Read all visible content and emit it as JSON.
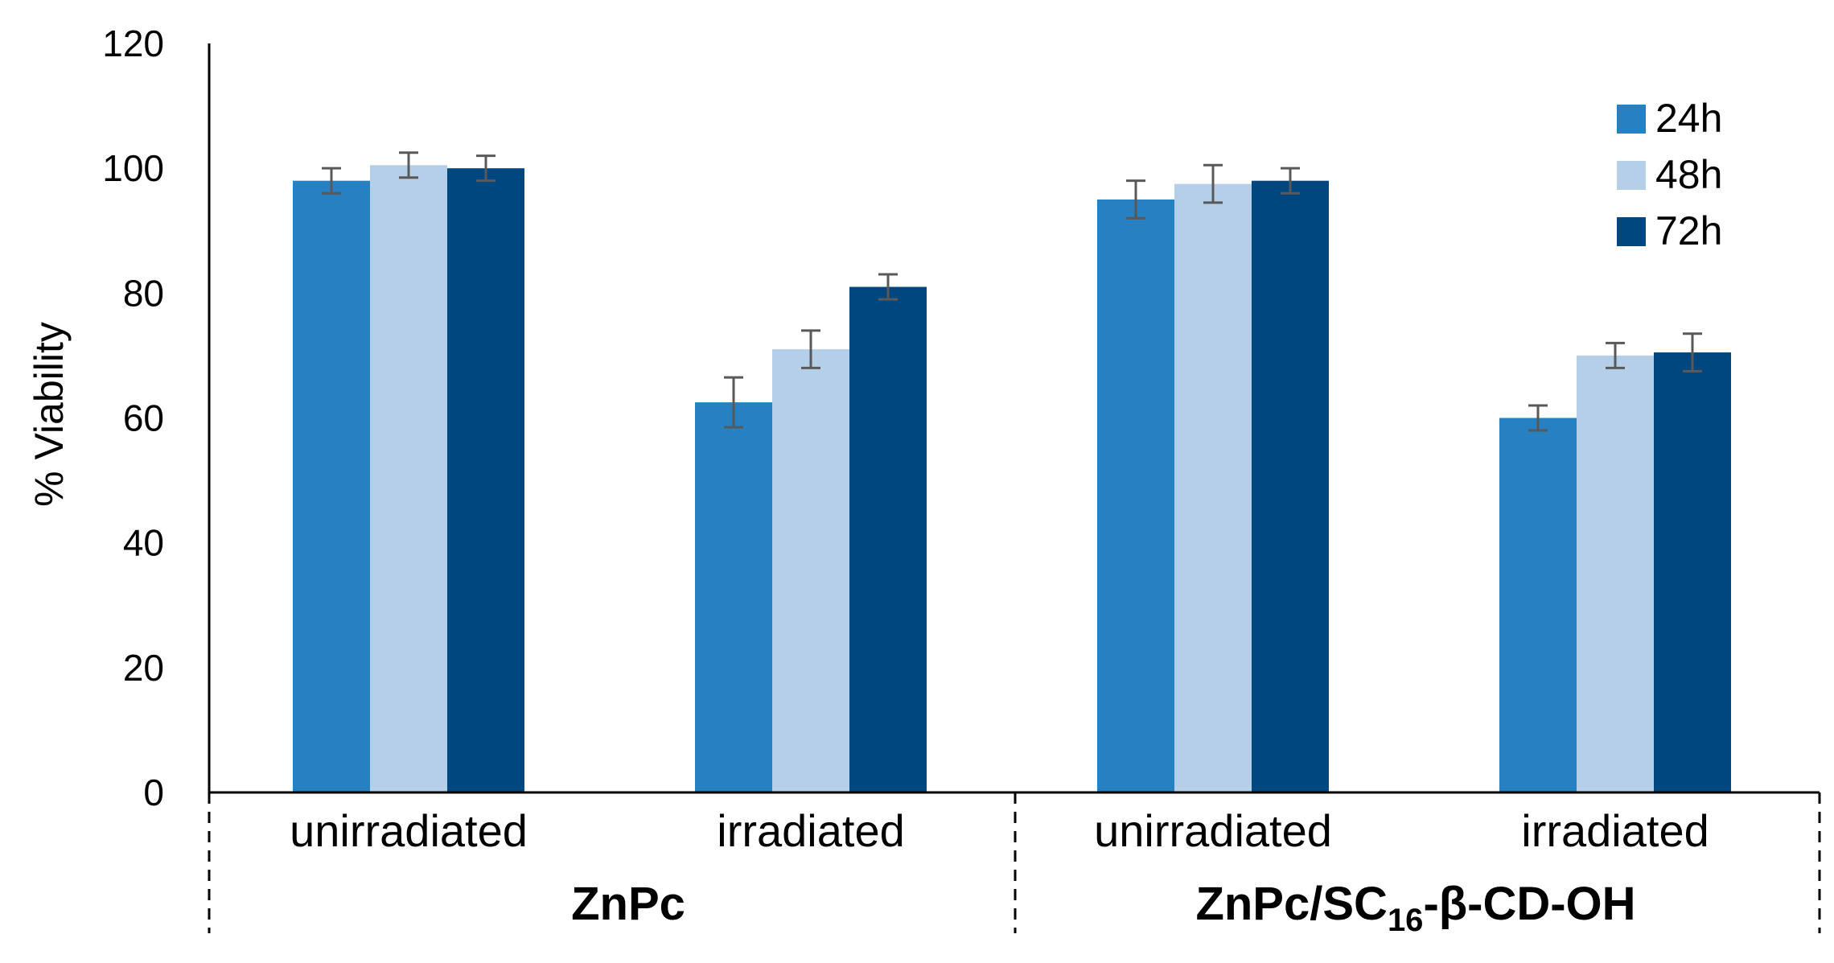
{
  "chart_data": {
    "type": "bar",
    "title": "",
    "xlabel": "",
    "ylabel": "% Viability",
    "ylim": [
      0,
      120
    ],
    "yticks": [
      0,
      20,
      40,
      60,
      80,
      100,
      120
    ],
    "categories": [
      "unirradiated",
      "irradiated",
      "unirradiated",
      "irradiated"
    ],
    "groups": [
      {
        "label": "ZnPc",
        "category_indices": [
          0,
          1
        ]
      },
      {
        "label_main": "ZnPc/SC",
        "label_sub": "16",
        "label_rest": "-β-CD-OH",
        "category_indices": [
          2,
          3
        ]
      }
    ],
    "series": [
      {
        "name": "24h",
        "color": "#2680C2",
        "values": [
          98,
          62.5,
          95,
          60
        ],
        "errors": [
          2,
          4,
          3,
          2
        ]
      },
      {
        "name": "48h",
        "color": "#B4CFE7",
        "values": [
          100.5,
          71,
          97.5,
          70
        ],
        "errors": [
          2,
          3,
          3,
          2
        ]
      },
      {
        "name": "72h",
        "color": "#004780",
        "values": [
          100,
          81,
          98,
          70.5
        ],
        "errors": [
          2,
          2,
          2,
          3
        ]
      }
    ],
    "legend_position": "top-right",
    "error_bar_color": "#595959"
  }
}
